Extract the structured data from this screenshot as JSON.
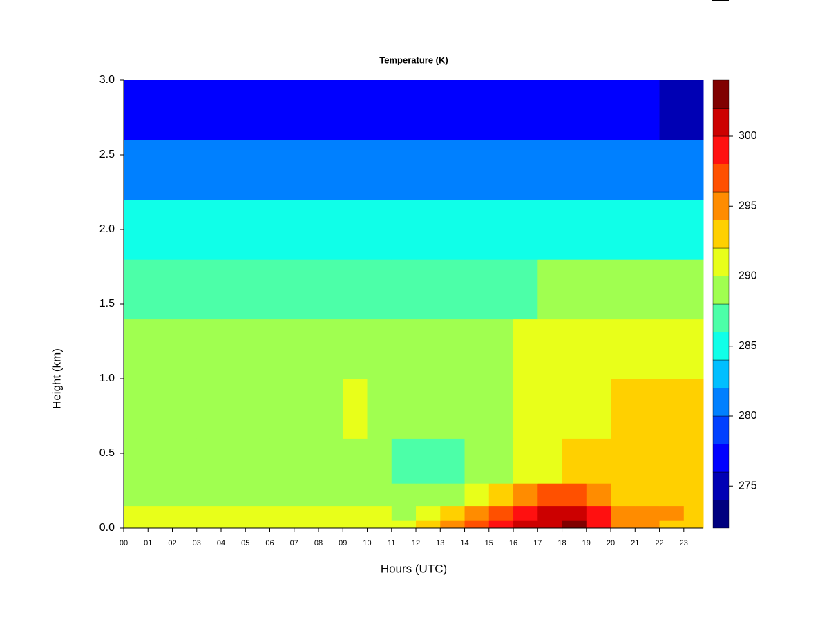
{
  "chart_data": {
    "type": "heatmap",
    "title": "Temperature (K)",
    "xlabel": "Hours (UTC)",
    "ylabel": "Height (km)",
    "x": [
      0,
      1,
      2,
      3,
      4,
      5,
      6,
      7,
      8,
      9,
      10,
      11,
      12,
      13,
      14,
      15,
      16,
      17,
      18,
      19,
      20,
      21,
      22,
      23
    ],
    "y_edges": [
      0,
      0.05,
      0.15,
      0.3,
      0.6,
      1.0,
      1.4,
      1.8,
      2.2,
      2.6,
      3.0
    ],
    "z": [
      [
        291,
        291,
        291,
        291,
        291,
        291,
        291,
        291,
        291,
        291,
        291,
        291,
        293,
        295,
        297,
        299,
        301,
        301,
        303,
        299,
        295,
        295,
        293,
        293
      ],
      [
        291,
        291,
        291,
        291,
        291,
        291,
        291,
        291,
        291,
        291,
        291,
        289,
        291,
        293,
        295,
        297,
        299,
        301,
        301,
        299,
        295,
        295,
        295,
        293
      ],
      [
        289,
        289,
        289,
        289,
        289,
        289,
        289,
        289,
        289,
        289,
        289,
        289,
        289,
        289,
        291,
        293,
        295,
        297,
        297,
        295,
        293,
        293,
        293,
        293
      ],
      [
        289,
        289,
        289,
        289,
        289,
        289,
        289,
        289,
        289,
        289,
        289,
        287,
        287,
        287,
        289,
        289,
        291,
        291,
        293,
        293,
        293,
        293,
        293,
        293
      ],
      [
        289,
        289,
        289,
        289,
        289,
        289,
        289,
        289,
        289,
        291,
        289,
        289,
        289,
        289,
        289,
        289,
        291,
        291,
        291,
        291,
        293,
        293,
        293,
        293
      ],
      [
        289,
        289,
        289,
        289,
        289,
        289,
        289,
        289,
        289,
        289,
        289,
        289,
        289,
        289,
        289,
        289,
        291,
        291,
        291,
        291,
        291,
        291,
        291,
        291
      ],
      [
        287,
        287,
        287,
        287,
        287,
        287,
        287,
        287,
        287,
        287,
        287,
        287,
        287,
        287,
        287,
        287,
        287,
        289,
        289,
        289,
        289,
        289,
        289,
        289
      ],
      [
        285,
        285,
        285,
        285,
        285,
        285,
        285,
        285,
        285,
        285,
        285,
        285,
        285,
        285,
        285,
        285,
        285,
        285,
        285,
        285,
        285,
        285,
        285,
        285
      ],
      [
        281,
        281,
        281,
        281,
        281,
        281,
        281,
        281,
        281,
        281,
        281,
        281,
        281,
        281,
        281,
        281,
        281,
        281,
        281,
        281,
        281,
        281,
        281,
        281
      ],
      [
        277,
        277,
        277,
        277,
        277,
        277,
        277,
        277,
        277,
        277,
        277,
        277,
        277,
        277,
        277,
        277,
        277,
        277,
        277,
        277,
        277,
        277,
        275,
        275
      ]
    ],
    "levels": [
      272,
      274,
      276,
      278,
      280,
      282,
      284,
      286,
      288,
      290,
      292,
      294,
      296,
      298,
      300,
      302,
      304
    ],
    "colors": [
      "#00007f",
      "#0000b4",
      "#0000ff",
      "#0040ff",
      "#0080ff",
      "#00bfff",
      "#10ffe8",
      "#4cffa8",
      "#a0ff50",
      "#e8ff1a",
      "#ffd000",
      "#ff8c00",
      "#ff5000",
      "#ff1010",
      "#cc0000",
      "#800000"
    ],
    "xlim": [
      0,
      23.8
    ],
    "ylim": [
      0,
      3
    ],
    "xticks": [
      {
        "value": 0,
        "label": "00"
      },
      {
        "value": 1,
        "label": "01"
      },
      {
        "value": 2,
        "label": "02"
      },
      {
        "value": 3,
        "label": "03"
      },
      {
        "value": 4,
        "label": "04"
      },
      {
        "value": 5,
        "label": "05"
      },
      {
        "value": 6,
        "label": "06"
      },
      {
        "value": 7,
        "label": "07"
      },
      {
        "value": 8,
        "label": "08"
      },
      {
        "value": 9,
        "label": "09"
      },
      10,
      11,
      12,
      13,
      14,
      15,
      16,
      17,
      18,
      19,
      20,
      21,
      22,
      23
    ],
    "yticks": [
      {
        "value": 0,
        "label": "0.0"
      },
      0.5,
      {
        "value": 1,
        "label": "1.0"
      },
      1.5,
      {
        "value": 2,
        "label": "2.0"
      },
      2.5,
      {
        "value": 3,
        "label": "3.0"
      }
    ],
    "colorbar_ticks": [
      275,
      280,
      285,
      290,
      295,
      300
    ]
  }
}
